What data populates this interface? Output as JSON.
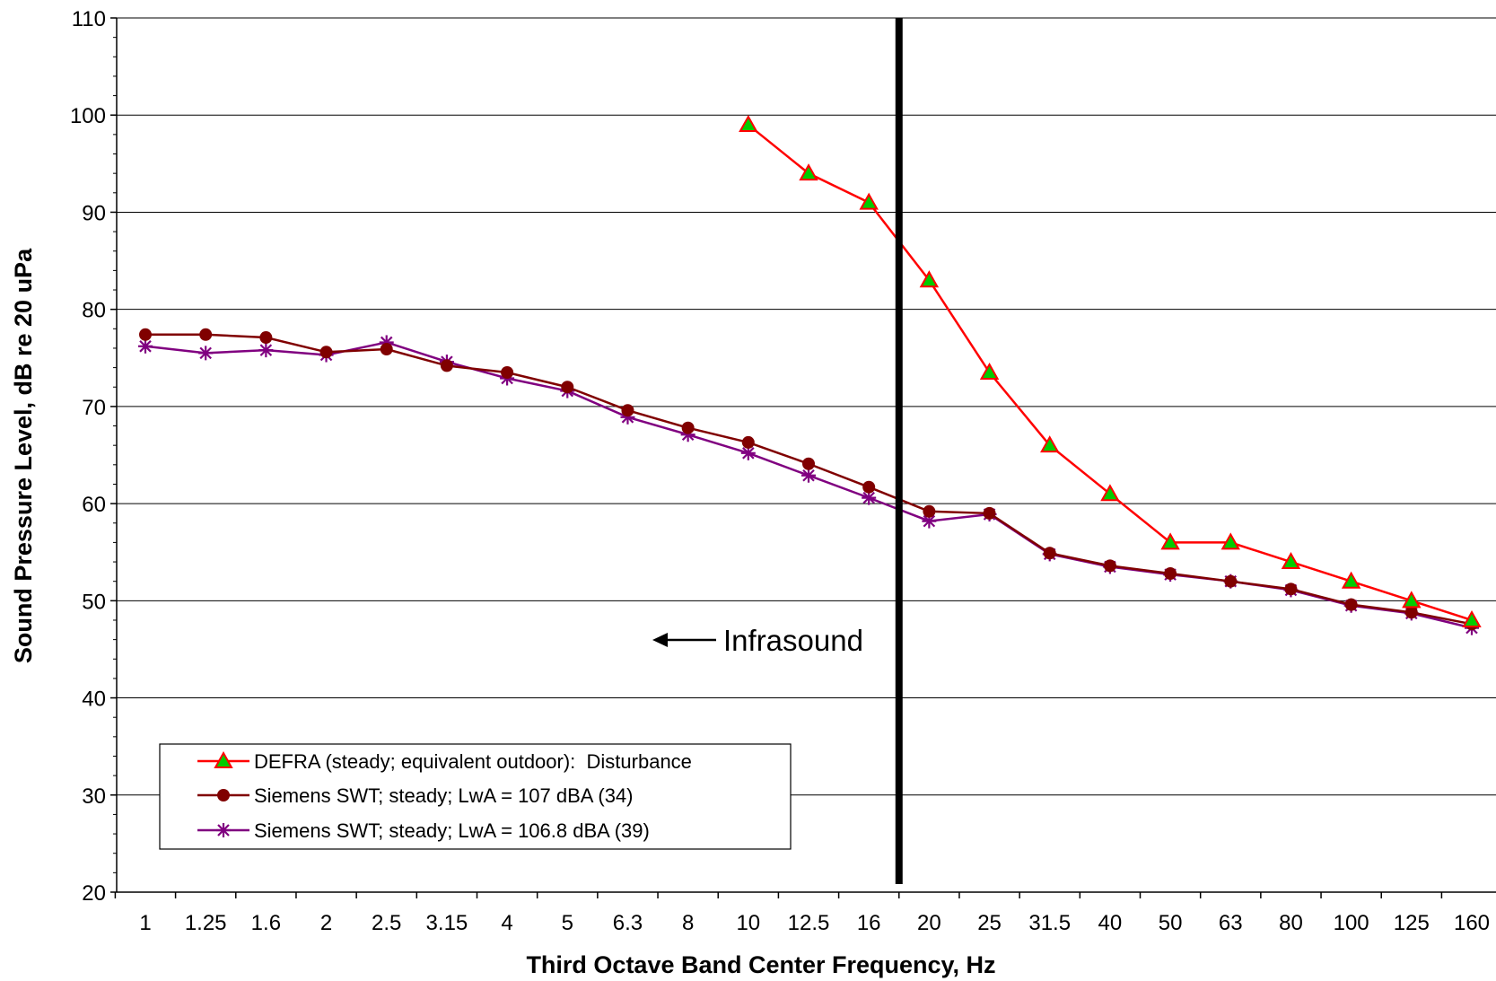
{
  "chart_data": {
    "type": "line",
    "xlabel": "Third Octave Band Center Frequency, Hz",
    "ylabel": "Sound Pressure Level, dB re 20 uPa",
    "ylim": [
      20,
      110
    ],
    "y_ticks": [
      20,
      30,
      40,
      50,
      60,
      70,
      80,
      90,
      100,
      110
    ],
    "grid": true,
    "legend_position": "bottom-left",
    "categories": [
      "1",
      "1.25",
      "1.6",
      "2",
      "2.5",
      "3.15",
      "4",
      "5",
      "6.3",
      "8",
      "10",
      "12.5",
      "16",
      "20",
      "25",
      "31.5",
      "40",
      "50",
      "63",
      "80",
      "100",
      "125",
      "160"
    ],
    "series": [
      {
        "name": "DEFRA (steady; equivalent outdoor):  Disturbance",
        "color": "#ff0000",
        "marker": "triangle",
        "marker_fill": "#00cc00",
        "values": [
          null,
          null,
          null,
          null,
          null,
          null,
          null,
          null,
          null,
          null,
          99,
          94,
          91,
          83,
          73.5,
          66,
          61,
          56,
          56,
          54,
          52,
          50,
          48
        ]
      },
      {
        "name": "Siemens SWT; steady; LwA = 107 dBA (34)",
        "color": "#800000",
        "marker": "circle",
        "marker_fill": "#800000",
        "values": [
          77.4,
          77.4,
          77.1,
          75.6,
          75.9,
          74.2,
          73.5,
          72.0,
          69.6,
          67.8,
          66.3,
          64.1,
          61.7,
          59.2,
          59.0,
          54.9,
          53.6,
          52.8,
          52.0,
          51.2,
          49.6,
          48.8,
          47.6
        ]
      },
      {
        "name": "Siemens SWT; steady; LwA = 106.8 dBA (39)",
        "color": "#800080",
        "marker": "asterisk",
        "marker_fill": "#800080",
        "values": [
          76.2,
          75.5,
          75.8,
          75.3,
          76.6,
          74.6,
          72.9,
          71.6,
          68.9,
          67.1,
          65.2,
          62.9,
          60.6,
          58.2,
          58.9,
          54.8,
          53.5,
          52.7,
          52.0,
          51.1,
          49.5,
          48.7,
          47.2
        ]
      }
    ],
    "annotations": [
      {
        "text": "Infrasound",
        "arrow": "left"
      }
    ],
    "divider_between": [
      "16",
      "20"
    ]
  }
}
